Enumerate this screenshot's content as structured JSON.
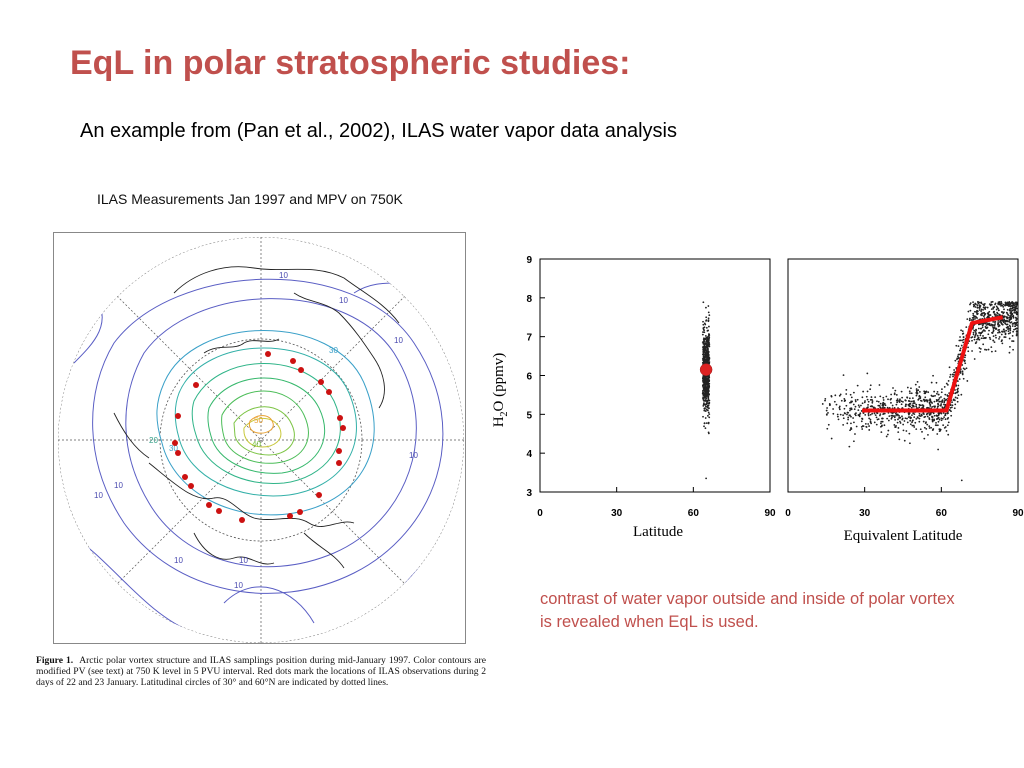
{
  "slide": {
    "title": "EqL in polar stratospheric studies:",
    "subtitle": "An example from (Pan et al., 2002), ILAS water vapor data analysis",
    "note": "contrast of water vapor outside and inside of polar vortex is revealed when EqL is used.",
    "title_color": "#c0504d"
  },
  "map": {
    "title": "ILAS Measurements Jan 1997 and MPV on 750K",
    "contour_labels": [
      "10",
      "10",
      "10",
      "10",
      "10",
      "10",
      "10",
      "10",
      "10",
      "20",
      "30",
      "30",
      "40",
      "50"
    ],
    "caption_label": "Figure 1.",
    "caption_text": "Arctic polar vortex structure and ILAS samplings position during mid-January 1997. Color contours are modified PV (see text) at 750 K level in 5 PVU interval. Red dots mark the locations of ILAS observations during 2 days of 22 and 23 January. Latitudinal circles of 30° and 60°N are indicated by dotted lines.",
    "sample_marker_color": "#cc1111"
  },
  "chart_data": [
    {
      "type": "scatter",
      "title": "",
      "xlabel": "Latitude",
      "ylabel": "H2O (ppmv)",
      "xlim": [
        0,
        90
      ],
      "ylim": [
        3,
        9
      ],
      "xticks": [
        "0",
        "30",
        "60",
        "90"
      ],
      "yticks": [
        "3",
        "4",
        "5",
        "6",
        "7",
        "8",
        "9"
      ],
      "series": [
        {
          "values_summary": {
            "x": 65,
            "y_min": 4.3,
            "y_max": 7.9,
            "y_center": 6.1
          }
        }
      ],
      "marker": {
        "x": 65,
        "y": 6.15,
        "color": "#dd2222"
      }
    },
    {
      "type": "scatter",
      "title": "",
      "xlabel": "Equivalent Latitude",
      "ylabel": "",
      "xlim": [
        0,
        90
      ],
      "ylim": [
        3,
        9
      ],
      "xticks": [
        "0",
        "30",
        "60",
        "90"
      ],
      "series": [
        {
          "values_summary": {
            "x_range": [
              12,
              90
            ],
            "y_range": [
              3.4,
              7.9
            ]
          }
        }
      ],
      "fit_line": {
        "x": [
          29,
          62,
          72,
          84
        ],
        "y": [
          5.1,
          5.1,
          7.35,
          7.5
        ],
        "color": "#ee1111"
      }
    }
  ]
}
